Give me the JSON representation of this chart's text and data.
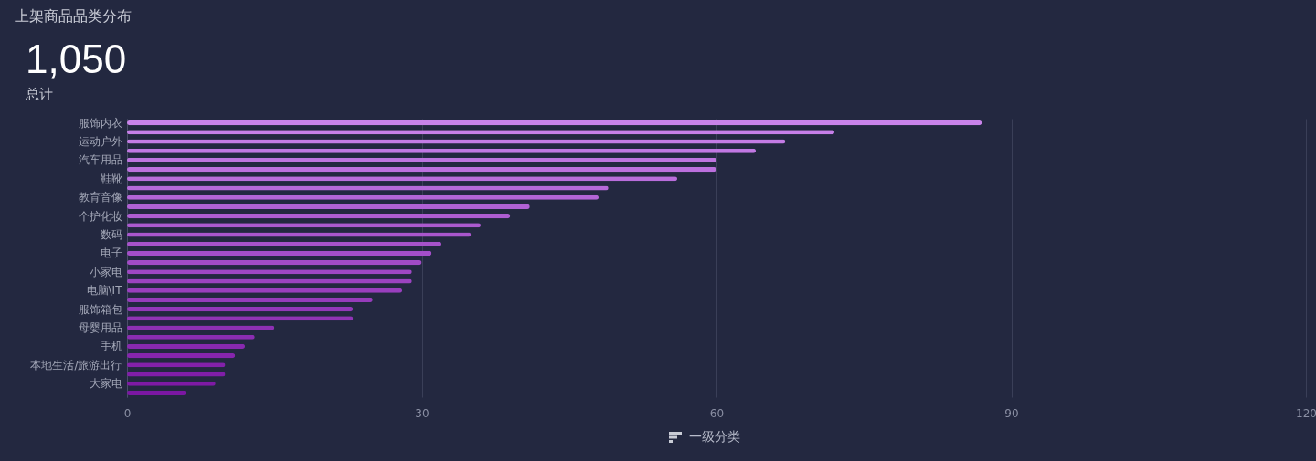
{
  "chart_data": {
    "type": "bar",
    "orientation": "horizontal",
    "title": "上架商品品类分布",
    "annotations": [
      "1,050",
      "总计"
    ],
    "xlabel": "一级分类",
    "categories": [
      "服饰内衣",
      null,
      "运动户外",
      null,
      "汽车用品",
      null,
      "鞋靴",
      null,
      "教育音像",
      null,
      "个护化妆",
      null,
      "数码",
      null,
      "电子",
      null,
      "小家电",
      null,
      "电脑\\IT",
      null,
      "服饰箱包",
      null,
      "母婴用品",
      null,
      "手机",
      null,
      "本地生活/旅游出行",
      null,
      "大家电",
      null
    ],
    "values": [
      87,
      72,
      67,
      64,
      60,
      60,
      56,
      49,
      48,
      41,
      39,
      36,
      35,
      32,
      31,
      30,
      29,
      29,
      28,
      25,
      23,
      23,
      15,
      13,
      12,
      11,
      10,
      10,
      9,
      6
    ],
    "colors": [
      "#c983ea",
      "#c67fe8",
      "#c47ce5",
      "#c178e3",
      "#be74e0",
      "#bc70de",
      "#b96ddb",
      "#b669d9",
      "#b365d6",
      "#b161d4",
      "#ae5dd2",
      "#ab5acf",
      "#a956cd",
      "#a652ca",
      "#a34ec8",
      "#a14bc5",
      "#9e47c3",
      "#9b43c0",
      "#993fbe",
      "#963cbb",
      "#9338b9",
      "#9134b6",
      "#8e30b4",
      "#8b2db2",
      "#8829af",
      "#8625ad",
      "#8321aa",
      "#801ea8",
      "#7e1aa5",
      "#7b17a3"
    ],
    "xlim": [
      0,
      120
    ],
    "xticks": [
      0,
      30,
      60,
      90,
      120
    ],
    "grid": "x"
  }
}
